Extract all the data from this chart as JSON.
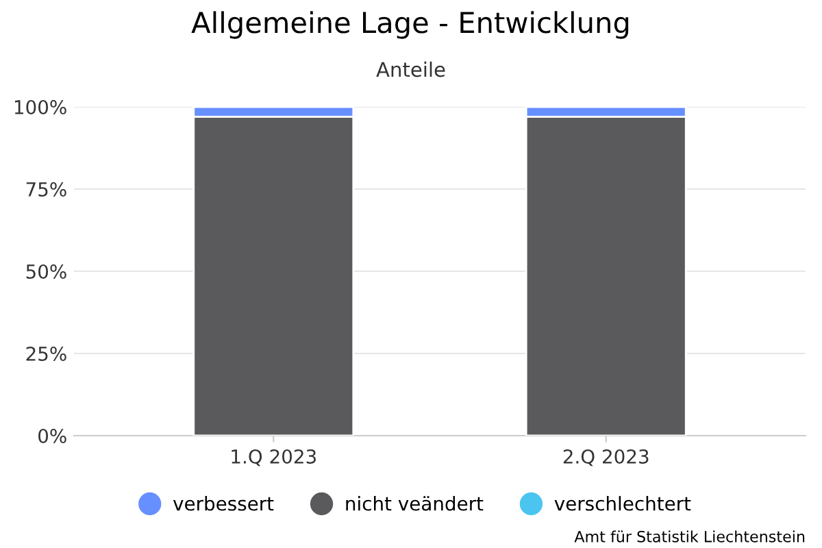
{
  "chart_data": {
    "type": "bar",
    "title": "Allgemeine Lage - Entwicklung",
    "subtitle": "Anteile",
    "categories": [
      "1.Q 2023",
      "2.Q 2023"
    ],
    "stacked": true,
    "series": [
      {
        "name": "verschlechtert",
        "color": "#4bc5f0",
        "values": [
          0,
          0
        ]
      },
      {
        "name": "nicht veändert",
        "color": "#5a5a5c",
        "values": [
          97,
          97
        ]
      },
      {
        "name": "verbessert",
        "color": "#6690ff",
        "values": [
          3,
          3
        ]
      }
    ],
    "ylim": [
      0,
      100
    ],
    "yticks": [
      {
        "value": 0,
        "label": "0%"
      },
      {
        "value": 25,
        "label": "25%"
      },
      {
        "value": 50,
        "label": "50%"
      },
      {
        "value": 75,
        "label": "75%"
      },
      {
        "value": 100,
        "label": "100%"
      }
    ],
    "grid": "y",
    "legend": "bottom",
    "annotations": [
      "Amt für Statistik Liechtenstein"
    ]
  }
}
